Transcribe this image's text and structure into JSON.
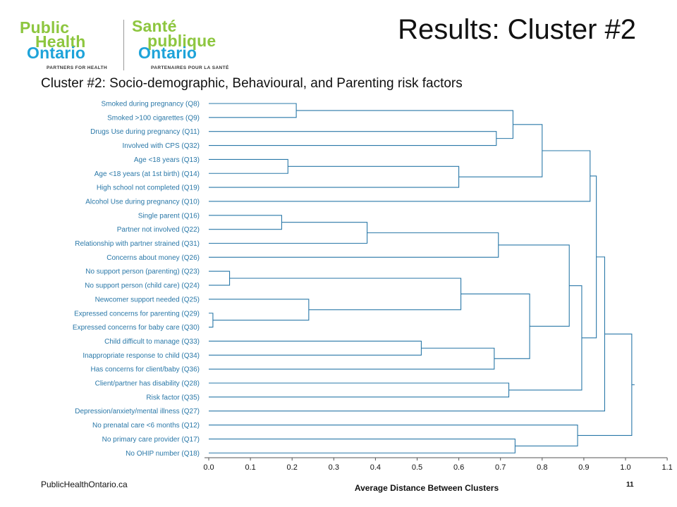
{
  "logo": {
    "en_line1": "Public",
    "en_line2": "Health",
    "en_line3": "Ontario",
    "fr_line1": "Santé",
    "fr_line2": "publique",
    "fr_line3": "Ontario",
    "en_tagline": "PARTNERS FOR HEALTH",
    "fr_tagline": "PARTENAIRES POUR LA SANTÉ"
  },
  "slide": {
    "title": "Results: Cluster #2",
    "footer_left": "PublicHealthOntario.ca",
    "page_number": "11"
  },
  "colors": {
    "accent": "#2a78a8",
    "logo_green": "#8dc63f",
    "logo_blue": "#1ea3d9"
  },
  "chart_data": {
    "type": "dendrogram",
    "title": "Cluster #2: Socio-demographic, Behavioural, and Parenting risk factors",
    "xlabel": "Average Distance Between Clusters",
    "xlim": [
      0.0,
      1.1
    ],
    "xticks": [
      "0.0",
      "0.1",
      "0.2",
      "0.3",
      "0.4",
      "0.5",
      "0.6",
      "0.7",
      "0.8",
      "0.9",
      "1.0",
      "1.1"
    ],
    "leaves": [
      "Smoked during pregnancy (Q8)",
      "Smoked >100 cigarettes (Q9)",
      "Drugs Use during pregnancy (Q11)",
      "Involved with CPS (Q32)",
      "Age <18 years (Q13)",
      "Age <18 years (at 1st birth) (Q14)",
      "High school not completed (Q19)",
      "Alcohol Use during pregnancy (Q10)",
      "Single parent (Q16)",
      "Partner not involved (Q22)",
      "Relationship with partner strained (Q31)",
      "Concerns about money (Q26)",
      "No support person (parenting) (Q23)",
      "No support person (child care) (Q24)",
      "Newcomer support needed (Q25)",
      "Expressed concerns for parenting (Q29)",
      "Expressed concerns for baby care (Q30)",
      "Child difficult to manage (Q33)",
      "Inappropriate response to child (Q34)",
      "Has concerns for client/baby (Q36)",
      "Client/partner has disability (Q28)",
      "Risk factor (Q35)",
      "Depression/anxiety/mental illness (Q27)",
      "No prenatal care <6 months (Q12)",
      "No primary care provider (Q17)",
      "No OHIP number (Q18)"
    ],
    "merges": [
      {
        "a": "L0",
        "b": "L1",
        "height": 0.21
      },
      {
        "a": "L2",
        "b": "L3",
        "height": 0.69
      },
      {
        "a": "M0",
        "b": "M1",
        "height": 0.73
      },
      {
        "a": "L4",
        "b": "L5",
        "height": 0.19
      },
      {
        "a": "M3",
        "b": "L6",
        "height": 0.6
      },
      {
        "a": "M2",
        "b": "M4",
        "height": 0.8
      },
      {
        "a": "M5",
        "b": "L7",
        "height": 0.915
      },
      {
        "a": "L8",
        "b": "L9",
        "height": 0.175
      },
      {
        "a": "M7",
        "b": "L10",
        "height": 0.38
      },
      {
        "a": "M8",
        "b": "L11",
        "height": 0.695
      },
      {
        "a": "L12",
        "b": "L13",
        "height": 0.05
      },
      {
        "a": "L15",
        "b": "L16",
        "height": 0.01
      },
      {
        "a": "L14",
        "b": "M11",
        "height": 0.24
      },
      {
        "a": "M10",
        "b": "M12",
        "height": 0.605
      },
      {
        "a": "L17",
        "b": "L18",
        "height": 0.51
      },
      {
        "a": "M14",
        "b": "L19",
        "height": 0.685
      },
      {
        "a": "M13",
        "b": "M15",
        "height": 0.77
      },
      {
        "a": "M9",
        "b": "M16",
        "height": 0.865
      },
      {
        "a": "L20",
        "b": "L21",
        "height": 0.72
      },
      {
        "a": "M17",
        "b": "M18",
        "height": 0.895
      },
      {
        "a": "M6",
        "b": "M19",
        "height": 0.93
      },
      {
        "a": "M20",
        "b": "L22",
        "height": 0.95
      },
      {
        "a": "L24",
        "b": "L25",
        "height": 0.735
      },
      {
        "a": "L23",
        "b": "M22",
        "height": 0.885
      },
      {
        "a": "M21",
        "b": "M23",
        "height": 1.015
      }
    ],
    "grid": false
  }
}
